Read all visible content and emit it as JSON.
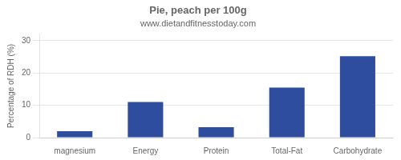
{
  "chart_data": {
    "type": "bar",
    "title": "Pie, peach per 100g",
    "subtitle": "www.dietandfitnesstoday.com",
    "categories": [
      "magnesium",
      "Energy",
      "Protein",
      "Total-Fat",
      "Carbohydrate"
    ],
    "values": [
      2.0,
      11.0,
      3.2,
      15.5,
      25.2
    ],
    "color": "#2e4d9e",
    "ylabel": "Percentage of RDH (%)",
    "ylim": [
      0,
      32
    ],
    "yticks": [
      0,
      10,
      20,
      30
    ],
    "grid": true
  }
}
